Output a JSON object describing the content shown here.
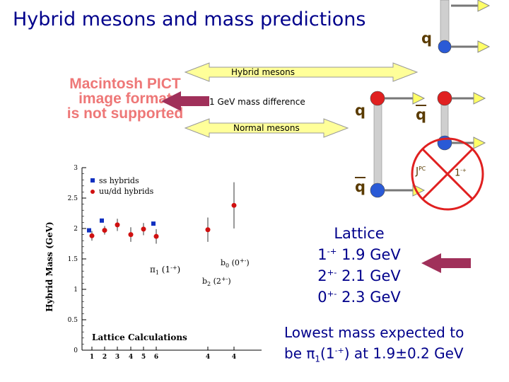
{
  "title": "Hybrid mesons and mass predictions",
  "pict_placeholder": [
    "Macintosh PICT",
    "image format",
    "is not supported"
  ],
  "arrows": {
    "hybrid": "Hybrid mesons",
    "diff": "1 GeV mass difference",
    "normal": "Normal mesons"
  },
  "quark_diagram": {
    "q_top": "q",
    "q_mid": "q",
    "qbar_mid": "q",
    "qbar_bottom": "q",
    "jpc": "J",
    "jpc_sup": "PC",
    "forbidden": "1",
    "forbidden_sup": "-+"
  },
  "lattice": {
    "heading": "Lattice",
    "rows": [
      {
        "jp": "1",
        "sup": "-+",
        "mass": "1.9 GeV"
      },
      {
        "jp": "2",
        "sup": "+-",
        "mass": "2.1 GeV"
      },
      {
        "jp": "0",
        "sup": "+-",
        "mass": "2.3 GeV"
      }
    ]
  },
  "conclusion": {
    "line1": "Lowest mass expected to",
    "line2_a": "be ",
    "line2_pi": "π",
    "line2_sub": "1",
    "line2_paren": "(1",
    "line2_sup": "-+",
    "line2_b": ") at 1.9±0.2 GeV"
  },
  "colors": {
    "title": "#00008b",
    "arrow_fill": "#ffff99",
    "arrow_stroke": "#999999",
    "maroon_arrow": "#a0305a",
    "quark_red": "#e02020",
    "antiquark_blue": "#2a5ad6",
    "gluon_string": "#c8c8c8",
    "forbid": "#e02020"
  },
  "chart_data": {
    "type": "scatter",
    "title": "",
    "xlabel": "",
    "ylabel": "Hybrid Mass (GeV)",
    "ylim": [
      0,
      3
    ],
    "yticks": [
      "0",
      "0.5",
      "1",
      "1.5",
      "2",
      "2.5",
      "3"
    ],
    "x_tick_labels": [
      "1",
      "2",
      "3",
      "4",
      "5",
      "6",
      "4",
      "4"
    ],
    "legend": [
      {
        "name": "ss hybrids",
        "color": "#1030c0",
        "marker": "square"
      },
      {
        "name": "uu/dd hybrids",
        "color": "#d01010",
        "marker": "circle"
      }
    ],
    "legend_placement": "top-left",
    "annotations": {
      "pi1": "π",
      "pi1_sub": "1",
      "pi1_jpc": " (1",
      "pi1_sup": "-+",
      "pi1_close": ")",
      "b0": "b",
      "b0_sub": "0",
      "b0_jpc": " (0",
      "b0_sup": "+-",
      "b0_close": ")",
      "b2": "b",
      "b2_sub": "2",
      "b2_jpc": " (2",
      "b2_sup": "+-",
      "b2_close": ")",
      "footer": "Lattice Calculations"
    },
    "series": [
      {
        "name": "ss hybrids",
        "points": [
          {
            "x": 1,
            "y": 1.97
          },
          {
            "x": 2,
            "y": 2.13
          },
          {
            "x": 6,
            "y": 2.08
          }
        ]
      },
      {
        "name": "uu/dd hybrids",
        "points": [
          {
            "x": 1,
            "y": 1.88,
            "err": 0.08
          },
          {
            "x": 2,
            "y": 1.97,
            "err": 0.07
          },
          {
            "x": 3,
            "y": 2.06,
            "err": 0.1
          },
          {
            "x": 4,
            "y": 1.9,
            "err": 0.12
          },
          {
            "x": 5,
            "y": 1.99,
            "err": 0.1
          },
          {
            "x": 6,
            "y": 1.87,
            "err": 0.12
          },
          {
            "x": 7,
            "y": 1.98,
            "err": 0.2
          },
          {
            "x": 8,
            "y": 2.38,
            "err": 0.38
          }
        ]
      }
    ]
  }
}
